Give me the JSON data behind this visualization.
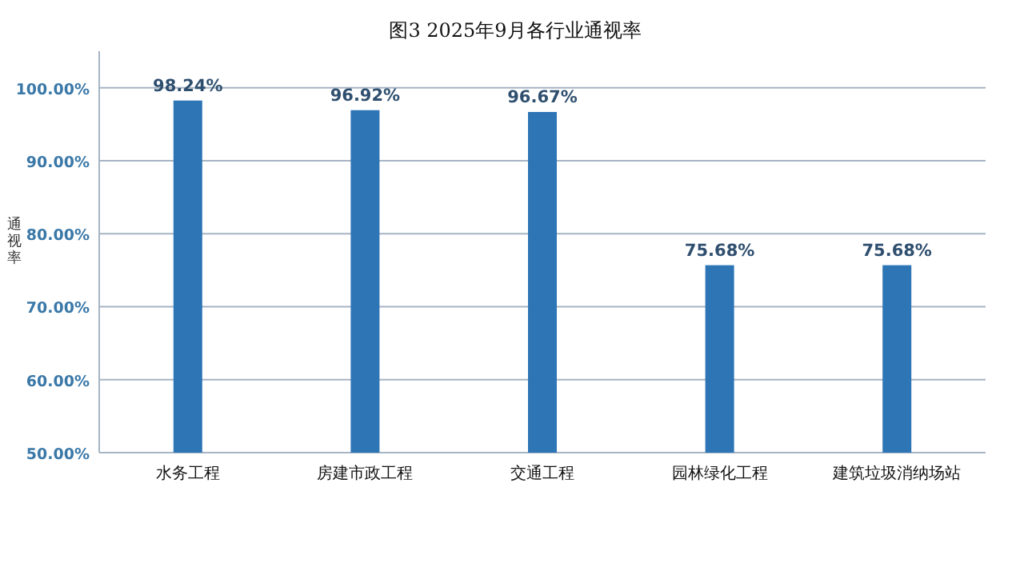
{
  "chart_data": {
    "type": "bar",
    "title": "图3 2025年9月各行业通视率",
    "ylabel": "通视率",
    "categories": [
      "水务工程",
      "房建市政工程",
      "交通工程",
      "园林绿化工程",
      "建筑垃圾消纳场站"
    ],
    "values": [
      98.24,
      96.92,
      96.67,
      75.68,
      75.68
    ],
    "value_labels": [
      "98.24%",
      "96.92%",
      "96.67%",
      "75.68%",
      "75.68%"
    ],
    "color": "#2e75b6",
    "ylim": [
      50,
      105
    ],
    "yticks": [
      {
        "value": 50,
        "label": "50.00%"
      },
      {
        "value": 60,
        "label": "60.00%"
      },
      {
        "value": 70,
        "label": "70.00%"
      },
      {
        "value": 80,
        "label": "80.00%"
      },
      {
        "value": 90,
        "label": "90.00%"
      },
      {
        "value": 100,
        "label": "100.00%"
      }
    ],
    "grid": "y"
  }
}
